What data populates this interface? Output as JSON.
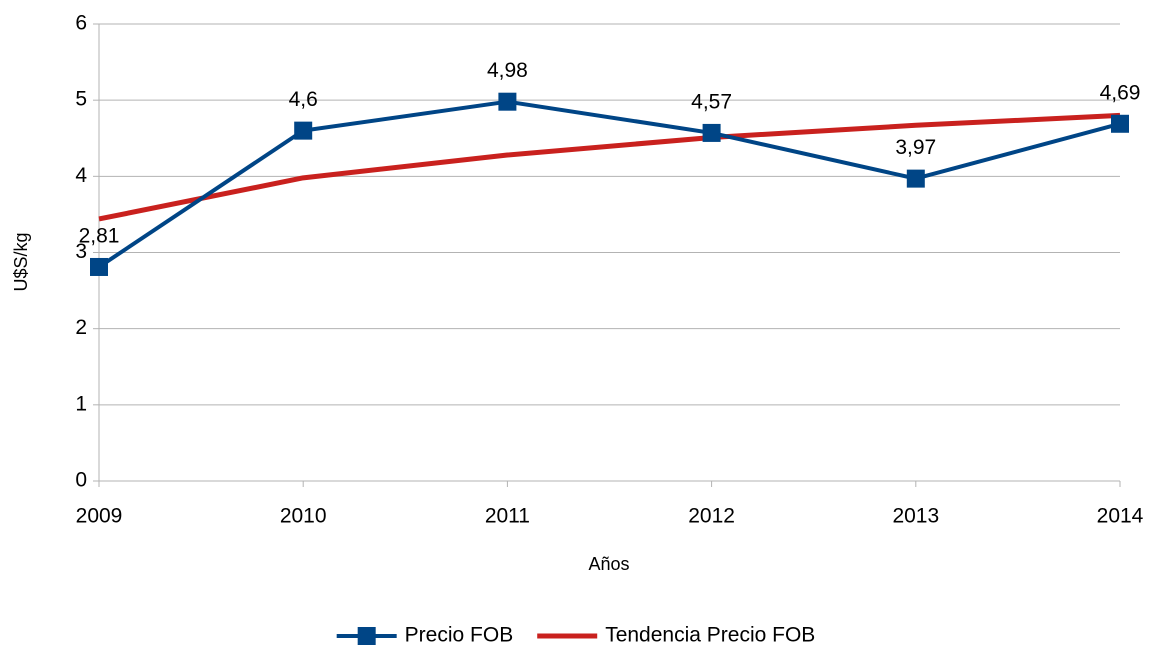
{
  "chart_data": {
    "type": "line",
    "x_label": "Años",
    "y_label": "U$S/kg",
    "x": [
      2009,
      2010,
      2011,
      2012,
      2013,
      2014
    ],
    "xlim": [
      2009,
      2014
    ],
    "xticks": [
      2009,
      2010,
      2011,
      2012,
      2013,
      2014
    ],
    "ylim": [
      0,
      6
    ],
    "yticks": [
      0,
      1,
      2,
      3,
      4,
      5,
      6
    ],
    "grid": true,
    "legend": "bottom",
    "series": [
      {
        "name": "Precio FOB",
        "color": "#004586",
        "marker": "square",
        "values": [
          2.81,
          4.6,
          4.98,
          4.57,
          3.97,
          4.69
        ],
        "value_labels": [
          "2,81",
          "4,6",
          "4,98",
          "4,57",
          "3,97",
          "4,69"
        ]
      },
      {
        "name": "Tendencia Precio FOB",
        "color": "#c9211e",
        "values": [
          3.44,
          3.98,
          4.28,
          4.51,
          4.67,
          4.8
        ]
      }
    ]
  }
}
